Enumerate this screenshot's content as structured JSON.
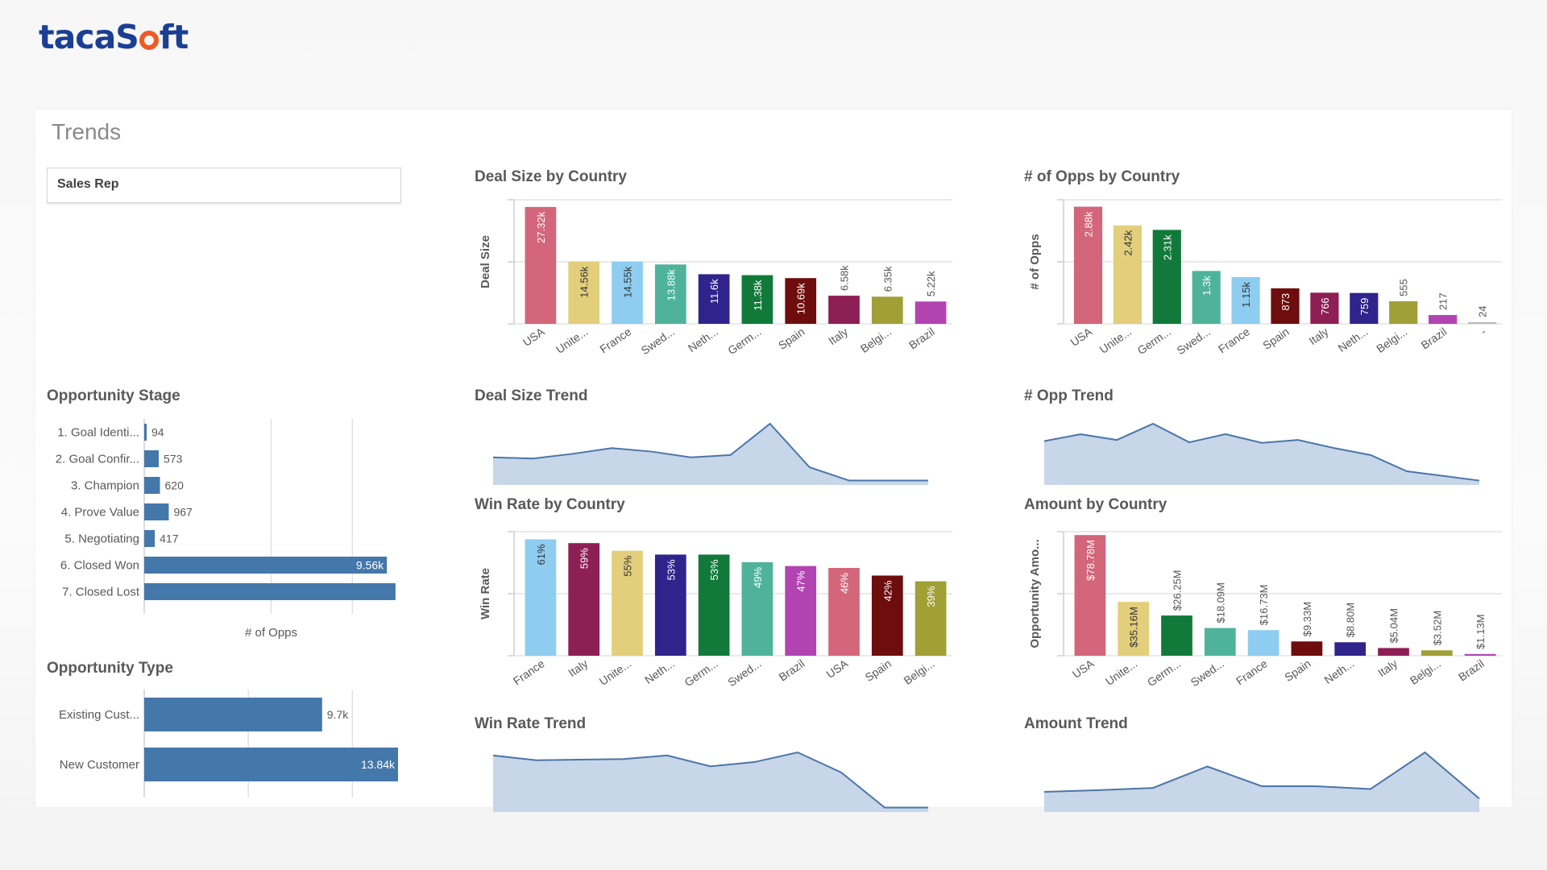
{
  "brand": {
    "logo_part1": "taca",
    "logo_part2": "S",
    "logo_part3": "ft"
  },
  "sheet": {
    "title": "Trends"
  },
  "filter": {
    "label": "Sales Rep"
  },
  "chart_data": [
    {
      "id": "deal_size_by_country",
      "type": "bar",
      "title": "Deal Size by Country",
      "ylabel": "Deal Size",
      "ylim": [
        0,
        29000
      ],
      "categories": [
        "USA",
        "Unite...",
        "France",
        "Swed...",
        "Neth...",
        "Germ...",
        "Spain",
        "Italy",
        "Belgi...",
        "Brazil"
      ],
      "values": [
        27320,
        14560,
        14550,
        13880,
        11600,
        11380,
        10690,
        6580,
        6350,
        5220
      ],
      "labels": [
        "27.32k",
        "14.56k",
        "14.55k",
        "13.88k",
        "11.6k",
        "11.38k",
        "10.69k",
        "6.58k",
        "6.35k",
        "5.22k"
      ],
      "colors": [
        "#d3667a",
        "#e3ce7c",
        "#8ecdf0",
        "#4fb39c",
        "#30248c",
        "#117a3a",
        "#6e0d0d",
        "#8e1f55",
        "#a0a036",
        "#b244b2"
      ]
    },
    {
      "id": "opps_by_country",
      "type": "bar",
      "title": "# of Opps by Country",
      "ylabel": "# of Opps",
      "ylim": [
        0,
        3050
      ],
      "categories": [
        "USA",
        "Unite...",
        "Germ...",
        "Swed...",
        "France",
        "Spain",
        "Italy",
        "Neth...",
        "Belgi...",
        "Brazil",
        "-"
      ],
      "values": [
        2880,
        2420,
        2310,
        1300,
        1150,
        873,
        766,
        759,
        555,
        217,
        24
      ],
      "labels": [
        "2.88k",
        "2.42k",
        "2.31k",
        "1.3k",
        "1.15k",
        "873",
        "766",
        "759",
        "555",
        "217",
        "24"
      ],
      "colors": [
        "#d3667a",
        "#e3ce7c",
        "#117a3a",
        "#4fb39c",
        "#8ecdf0",
        "#6e0d0d",
        "#8e1f55",
        "#30248c",
        "#a0a036",
        "#b244b2",
        "#b8b8b8"
      ]
    },
    {
      "id": "deal_size_trend",
      "type": "area",
      "title": "Deal Size Trend",
      "values": [
        42,
        40,
        48,
        58,
        52,
        42,
        46,
        100,
        25,
        2,
        2,
        2
      ]
    },
    {
      "id": "opp_trend",
      "type": "area",
      "title": "# Opp Trend",
      "values": [
        70,
        82,
        72,
        100,
        68,
        82,
        67,
        72,
        58,
        46,
        18,
        10,
        2
      ]
    },
    {
      "id": "win_rate_by_country",
      "type": "bar",
      "title": "Win Rate by Country",
      "ylabel": "Win Rate",
      "ylim": [
        0,
        65
      ],
      "categories": [
        "France",
        "Italy",
        "Unite...",
        "Neth...",
        "Germ...",
        "Swed...",
        "Brazil",
        "USA",
        "Spain",
        "Belgi..."
      ],
      "values": [
        61,
        59,
        55,
        53,
        53,
        49,
        47,
        46,
        42,
        39
      ],
      "labels": [
        "61%",
        "59%",
        "55%",
        "53%",
        "53%",
        "49%",
        "47%",
        "46%",
        "42%",
        "39%"
      ],
      "colors": [
        "#8ecdf0",
        "#8e1f55",
        "#e3ce7c",
        "#30248c",
        "#117a3a",
        "#4fb39c",
        "#b244b2",
        "#d3667a",
        "#6e0d0d",
        "#a0a036"
      ]
    },
    {
      "id": "amount_by_country",
      "type": "bar",
      "title": "Amount by Country",
      "ylabel": "Opportunity Amo...",
      "ylim": [
        0,
        81000000
      ],
      "categories": [
        "USA",
        "Unite...",
        "Germ...",
        "Swed...",
        "France",
        "Spain",
        "Neth...",
        "Italy",
        "Belgi...",
        "Brazil"
      ],
      "values": [
        78780000,
        35160000,
        26250000,
        18090000,
        16730000,
        9330000,
        8800000,
        5040000,
        3520000,
        1130000
      ],
      "labels": [
        "$78.78M",
        "$35.16M",
        "$26.25M",
        "$18.09M",
        "$16.73M",
        "$9.33M",
        "$8.80M",
        "$5.04M",
        "$3.52M",
        "$1.13M"
      ],
      "colors": [
        "#d3667a",
        "#e3ce7c",
        "#117a3a",
        "#4fb39c",
        "#8ecdf0",
        "#6e0d0d",
        "#30248c",
        "#8e1f55",
        "#a0a036",
        "#b244b2"
      ]
    },
    {
      "id": "win_rate_trend",
      "type": "area",
      "title": "Win Rate Trend",
      "values": [
        88,
        80,
        81,
        82,
        88,
        70,
        77,
        93,
        60,
        2,
        2
      ]
    },
    {
      "id": "amount_trend",
      "type": "area",
      "title": "Amount Trend",
      "values": [
        30,
        33,
        37,
        75,
        40,
        40,
        35,
        100,
        18
      ]
    },
    {
      "id": "opportunity_stage",
      "type": "bar",
      "orientation": "horizontal",
      "title": "Opportunity Stage",
      "xlabel": "# of Opps",
      "xlim": [
        0,
        10000
      ],
      "categories": [
        "1. Goal Identi...",
        "2. Goal Confir...",
        "3. Champion",
        "4. Prove Value",
        "5. Negotiating",
        "6. Closed Won",
        "7. Closed Lost"
      ],
      "values": [
        94,
        573,
        620,
        967,
        417,
        9560,
        9900
      ],
      "labels": [
        "94",
        "573",
        "620",
        "967",
        "417",
        "9.56k",
        ""
      ],
      "colors": [
        "#4477aa"
      ]
    },
    {
      "id": "opportunity_type",
      "type": "bar",
      "orientation": "horizontal",
      "title": "Opportunity Type",
      "xlim": [
        0,
        13840
      ],
      "categories": [
        "Existing Cust...",
        "New Customer"
      ],
      "values": [
        9700,
        13840
      ],
      "labels": [
        "9.7k",
        "13.84k"
      ],
      "colors": [
        "#4477aa"
      ]
    }
  ]
}
